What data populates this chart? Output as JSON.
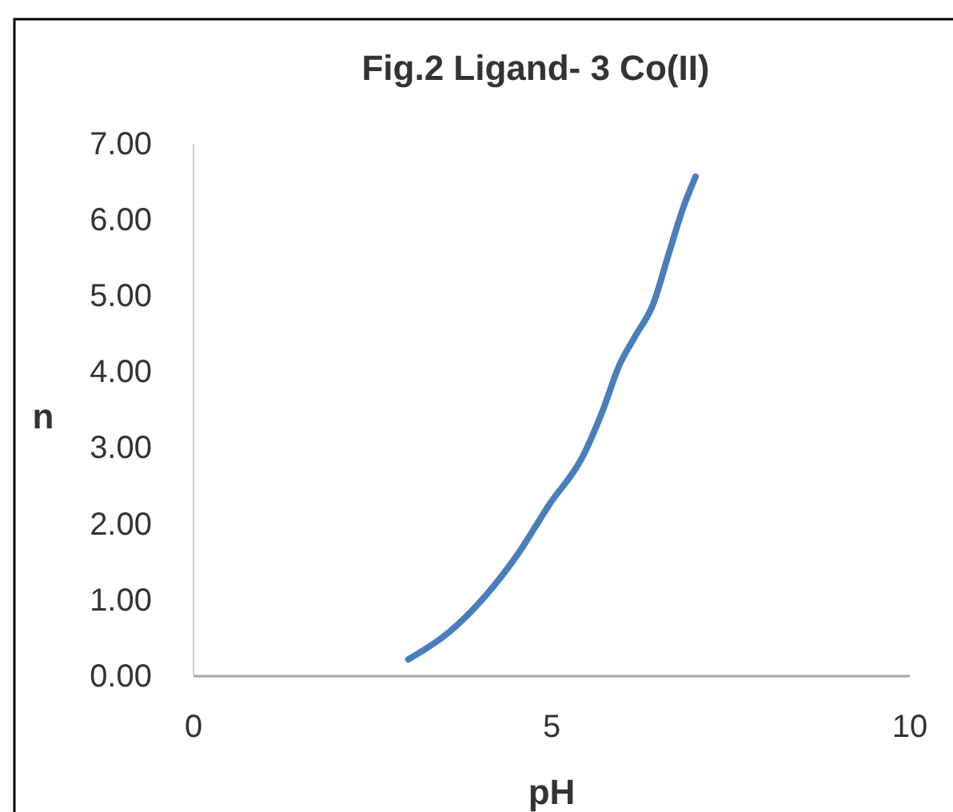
{
  "chart_data": {
    "type": "line",
    "title": "Fig.2 Ligand- 3 Co(II)",
    "xlabel": "pH",
    "ylabel": "n",
    "series": [
      {
        "color": "#4a7ebb",
        "x": [
          3.0,
          3.57,
          4.08,
          4.51,
          4.97,
          5.44,
          5.7,
          5.95,
          6.16,
          6.42,
          6.63,
          6.84,
          7.01
        ],
        "values": [
          0.22,
          0.58,
          1.06,
          1.58,
          2.26,
          2.9,
          3.46,
          4.1,
          4.46,
          4.9,
          5.54,
          6.17,
          6.57
        ]
      }
    ],
    "xlim": [
      0,
      10
    ],
    "xticks": [
      0,
      5,
      10
    ],
    "ylim": [
      0,
      7
    ],
    "yticks": [
      {
        "value": 0,
        "label": "0.00"
      },
      {
        "value": 1,
        "label": "1.00"
      },
      {
        "value": 2,
        "label": "2.00"
      },
      {
        "value": 3,
        "label": "3.00"
      },
      {
        "value": 4,
        "label": "4.00"
      },
      {
        "value": 5,
        "label": "5.00"
      },
      {
        "value": 6,
        "label": "6.00"
      },
      {
        "value": 7,
        "label": "7.00"
      }
    ],
    "grid": false,
    "marker": "none",
    "line_style": "solid"
  }
}
